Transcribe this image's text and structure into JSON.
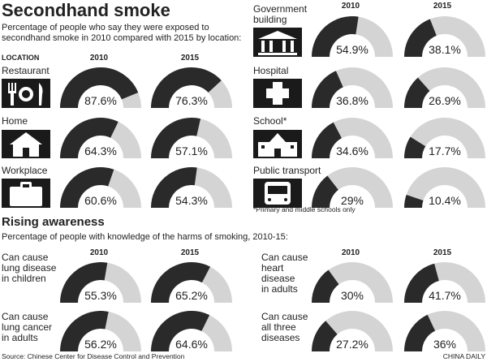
{
  "smoke": {
    "title": "Secondhand smoke",
    "subtitle": [
      "Percentage of people who say they were exposed to",
      "secondhand smoke in 2010 compared with 2015 by location:"
    ],
    "column_header": "LOCATION",
    "years": [
      "2010",
      "2015"
    ],
    "gauge_range": [
      0,
      100
    ],
    "rows": [
      {
        "label": [
          "Restaurant"
        ],
        "values": [
          87.6,
          76.3
        ],
        "value_labels": [
          "87.6%",
          "76.3%"
        ]
      },
      {
        "label": [
          "Home"
        ],
        "values": [
          64.3,
          57.1
        ],
        "value_labels": [
          "64.3%",
          "57.1%"
        ]
      },
      {
        "label": [
          "Workplace"
        ],
        "values": [
          60.6,
          54.3
        ],
        "value_labels": [
          "60.6%",
          "54.3%"
        ]
      },
      {
        "label": [
          "Government",
          "building"
        ],
        "values": [
          54.9,
          38.1
        ],
        "value_labels": [
          "54.9%",
          "38.1%"
        ]
      },
      {
        "label": [
          "Hospital"
        ],
        "values": [
          36.8,
          26.9
        ],
        "value_labels": [
          "36.8%",
          "26.9%"
        ]
      },
      {
        "label": [
          "School*"
        ],
        "values": [
          34.6,
          17.7
        ],
        "value_labels": [
          "34.6%",
          "17.7%"
        ]
      },
      {
        "label": [
          "Public transport"
        ],
        "values": [
          29,
          10.4
        ],
        "value_labels": [
          "29%",
          "10.4%"
        ]
      }
    ],
    "footnote": "*Primary and middle schools only"
  },
  "awareness": {
    "title": "Rising awareness",
    "subtitle": "Percentage of people with knowledge of the harms of smoking, 2010-15:",
    "years": [
      "2010",
      "2015"
    ],
    "gauge_range": [
      0,
      100
    ],
    "rows": [
      {
        "label": [
          "Can cause",
          "lung disease",
          "in children"
        ],
        "values": [
          55.3,
          65.2
        ],
        "value_labels": [
          "55.3%",
          "65.2%"
        ]
      },
      {
        "label": [
          "Can cause",
          "lung cancer",
          "in adults"
        ],
        "values": [
          56.2,
          64.6
        ],
        "value_labels": [
          "56.2%",
          "64.6%"
        ]
      },
      {
        "label": [
          "Can cause",
          "heart",
          "disease",
          "in adults"
        ],
        "values": [
          30,
          41.7
        ],
        "value_labels": [
          "30%",
          "41.7%"
        ]
      },
      {
        "label": [
          "Can cause",
          "all three",
          "diseases"
        ],
        "values": [
          27.2,
          36
        ],
        "value_labels": [
          "27.2%",
          "36%"
        ]
      }
    ]
  },
  "source": "Source: Chinese Center for Disease Control and Prevention",
  "credit": "CHINA DAILY"
}
